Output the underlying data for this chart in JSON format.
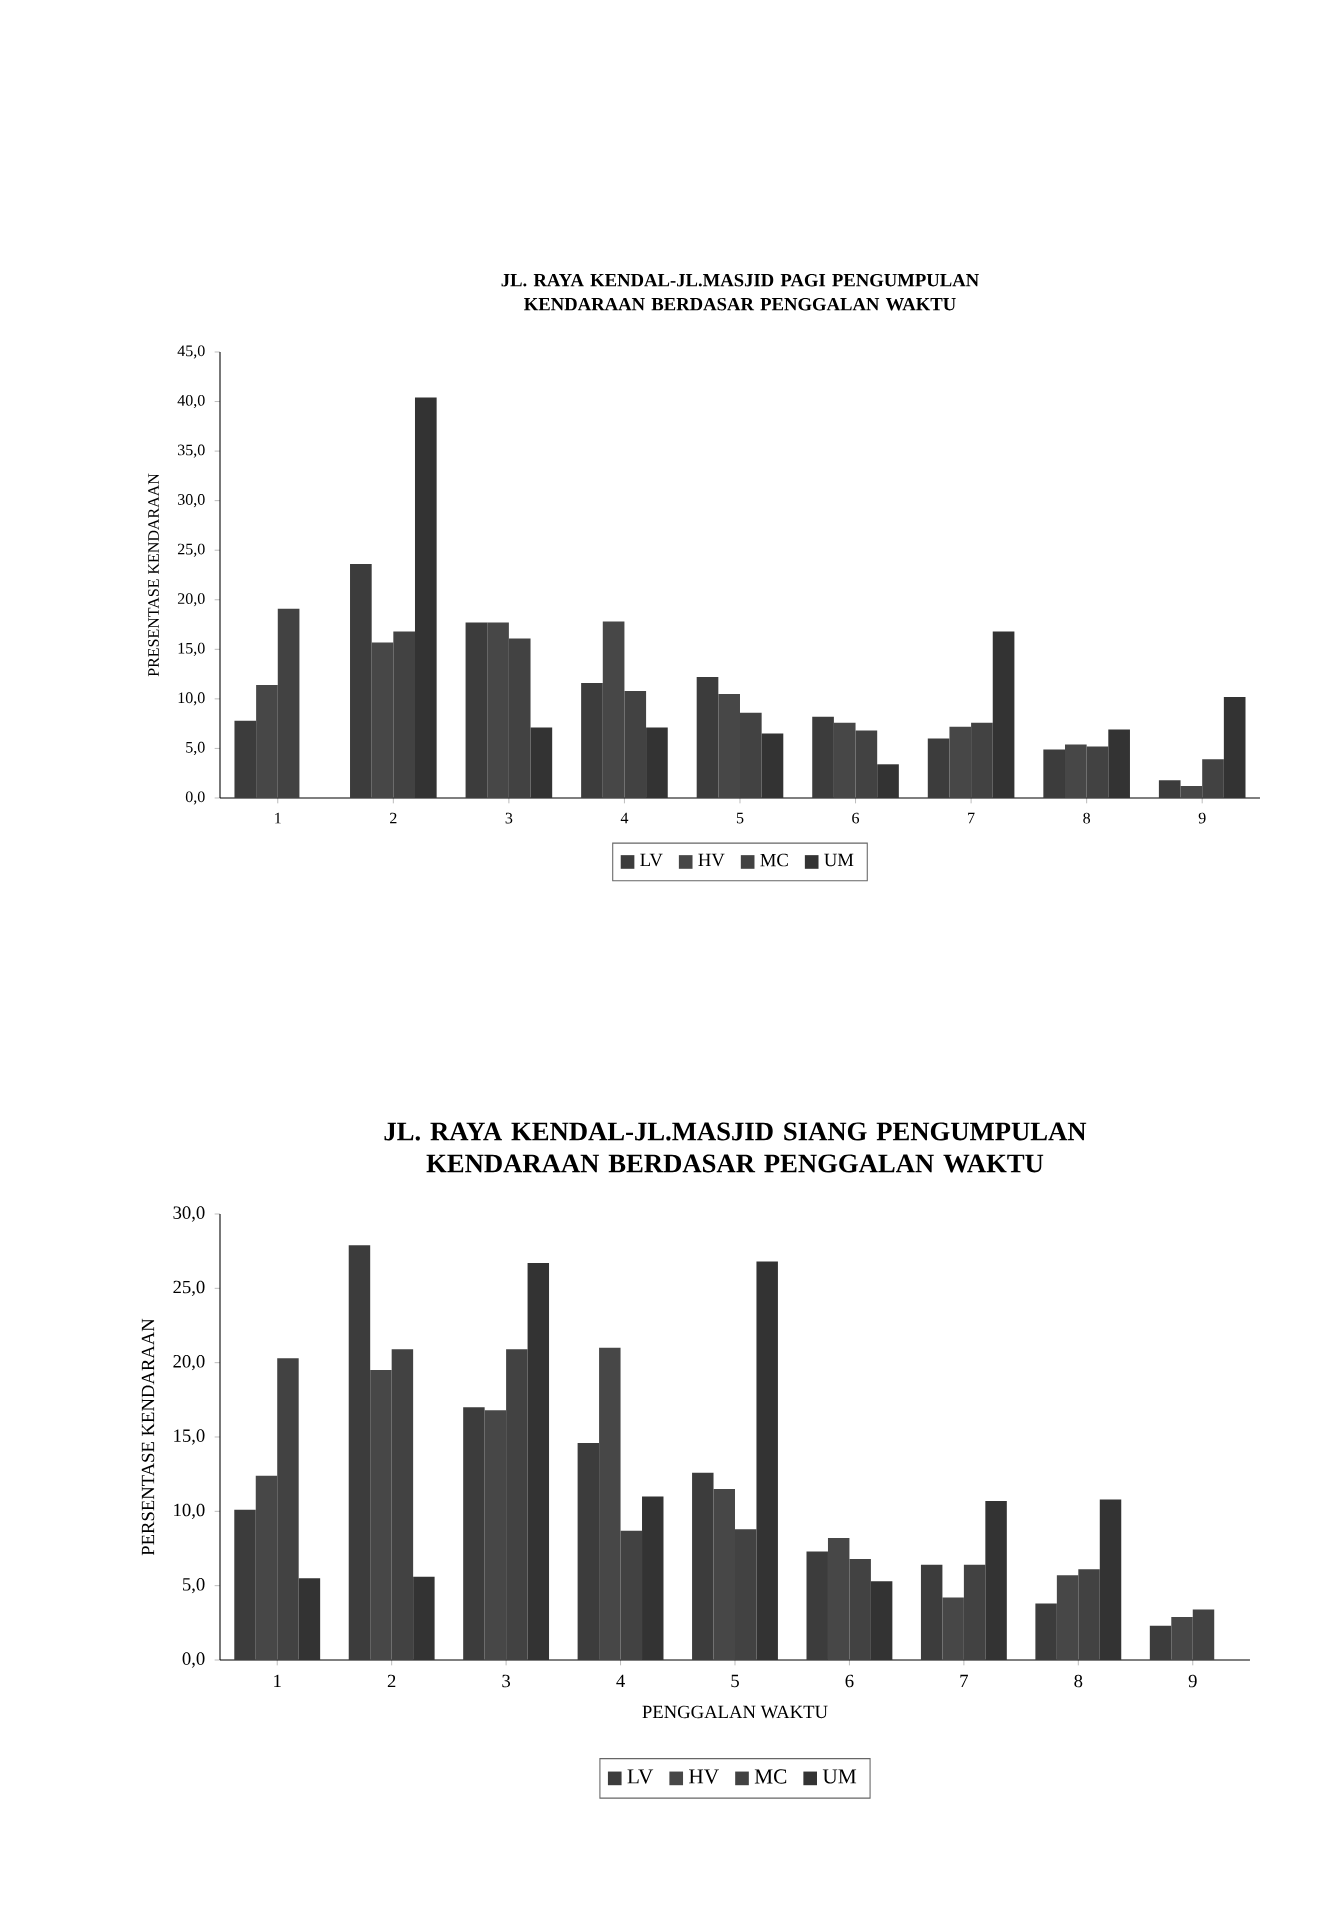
{
  "chart_data": [
    {
      "type": "bar",
      "title": "JL. RAYA KENDAL-JL.MASJID PAGI PENGUMPULAN KENDARAAN BERDASAR PENGGALAN WAKTU",
      "ylabel": "PRESENTASE KENDARAAN",
      "categories": [
        "1",
        "2",
        "3",
        "4",
        "5",
        "6",
        "7",
        "8",
        "9"
      ],
      "ylim": [
        0,
        45
      ],
      "yticks": [
        {
          "value": 0,
          "label": "0,0"
        },
        {
          "value": 5,
          "label": "5,0"
        },
        {
          "value": 10,
          "label": "10,0"
        },
        {
          "value": 15,
          "label": "15,0"
        },
        {
          "value": 20,
          "label": "20,0"
        },
        {
          "value": 25,
          "label": "25,0"
        },
        {
          "value": 30,
          "label": "30,0"
        },
        {
          "value": 35,
          "label": "35,0"
        },
        {
          "value": 40,
          "label": "40,0"
        },
        {
          "value": 45,
          "label": "45,0"
        }
      ],
      "legend": "bottom",
      "series": [
        {
          "name": "LV",
          "color": "#3c3c3c",
          "values": [
            7.8,
            23.6,
            17.7,
            11.6,
            12.2,
            8.2,
            6.0,
            4.9,
            1.8
          ]
        },
        {
          "name": "HV",
          "color": "#474747",
          "values": [
            11.4,
            15.7,
            17.7,
            17.8,
            10.5,
            7.6,
            7.2,
            5.4,
            1.2
          ]
        },
        {
          "name": "MC",
          "color": "#424242",
          "values": [
            19.1,
            16.8,
            16.1,
            10.8,
            8.6,
            6.8,
            7.6,
            5.2,
            3.9
          ]
        },
        {
          "name": "UM",
          "color": "#333333",
          "values": [
            0,
            40.4,
            7.1,
            7.1,
            6.5,
            3.4,
            16.8,
            6.9,
            10.2
          ]
        }
      ]
    },
    {
      "type": "bar",
      "title": "JL. RAYA KENDAL-JL.MASJID SIANG PENGUMPULAN KENDARAAN BERDASAR PENGGALAN WAKTU",
      "xlabel": "PENGGALAN WAKTU",
      "ylabel": "PERSENTASE KENDARAAN",
      "categories": [
        "1",
        "2",
        "3",
        "4",
        "5",
        "6",
        "7",
        "8",
        "9"
      ],
      "ylim": [
        0,
        30
      ],
      "yticks": [
        {
          "value": 0,
          "label": "0,0"
        },
        {
          "value": 5,
          "label": "5,0"
        },
        {
          "value": 10,
          "label": "10,0"
        },
        {
          "value": 15,
          "label": "15,0"
        },
        {
          "value": 20,
          "label": "20,0"
        },
        {
          "value": 25,
          "label": "25,0"
        },
        {
          "value": 30,
          "label": "30,0"
        }
      ],
      "legend": "bottom",
      "series": [
        {
          "name": "LV",
          "color": "#3c3c3c",
          "values": [
            10.1,
            27.9,
            17.0,
            14.6,
            12.6,
            7.3,
            6.4,
            3.8,
            2.3
          ]
        },
        {
          "name": "HV",
          "color": "#474747",
          "values": [
            12.4,
            19.5,
            16.8,
            21.0,
            11.5,
            8.2,
            4.2,
            5.7,
            2.9
          ]
        },
        {
          "name": "MC",
          "color": "#424242",
          "values": [
            20.3,
            20.9,
            20.9,
            8.7,
            8.8,
            6.8,
            6.4,
            6.1,
            3.4
          ]
        },
        {
          "name": "UM",
          "color": "#333333",
          "values": [
            5.5,
            5.6,
            26.7,
            11.0,
            26.8,
            5.3,
            10.7,
            10.8,
            0
          ]
        }
      ]
    }
  ]
}
